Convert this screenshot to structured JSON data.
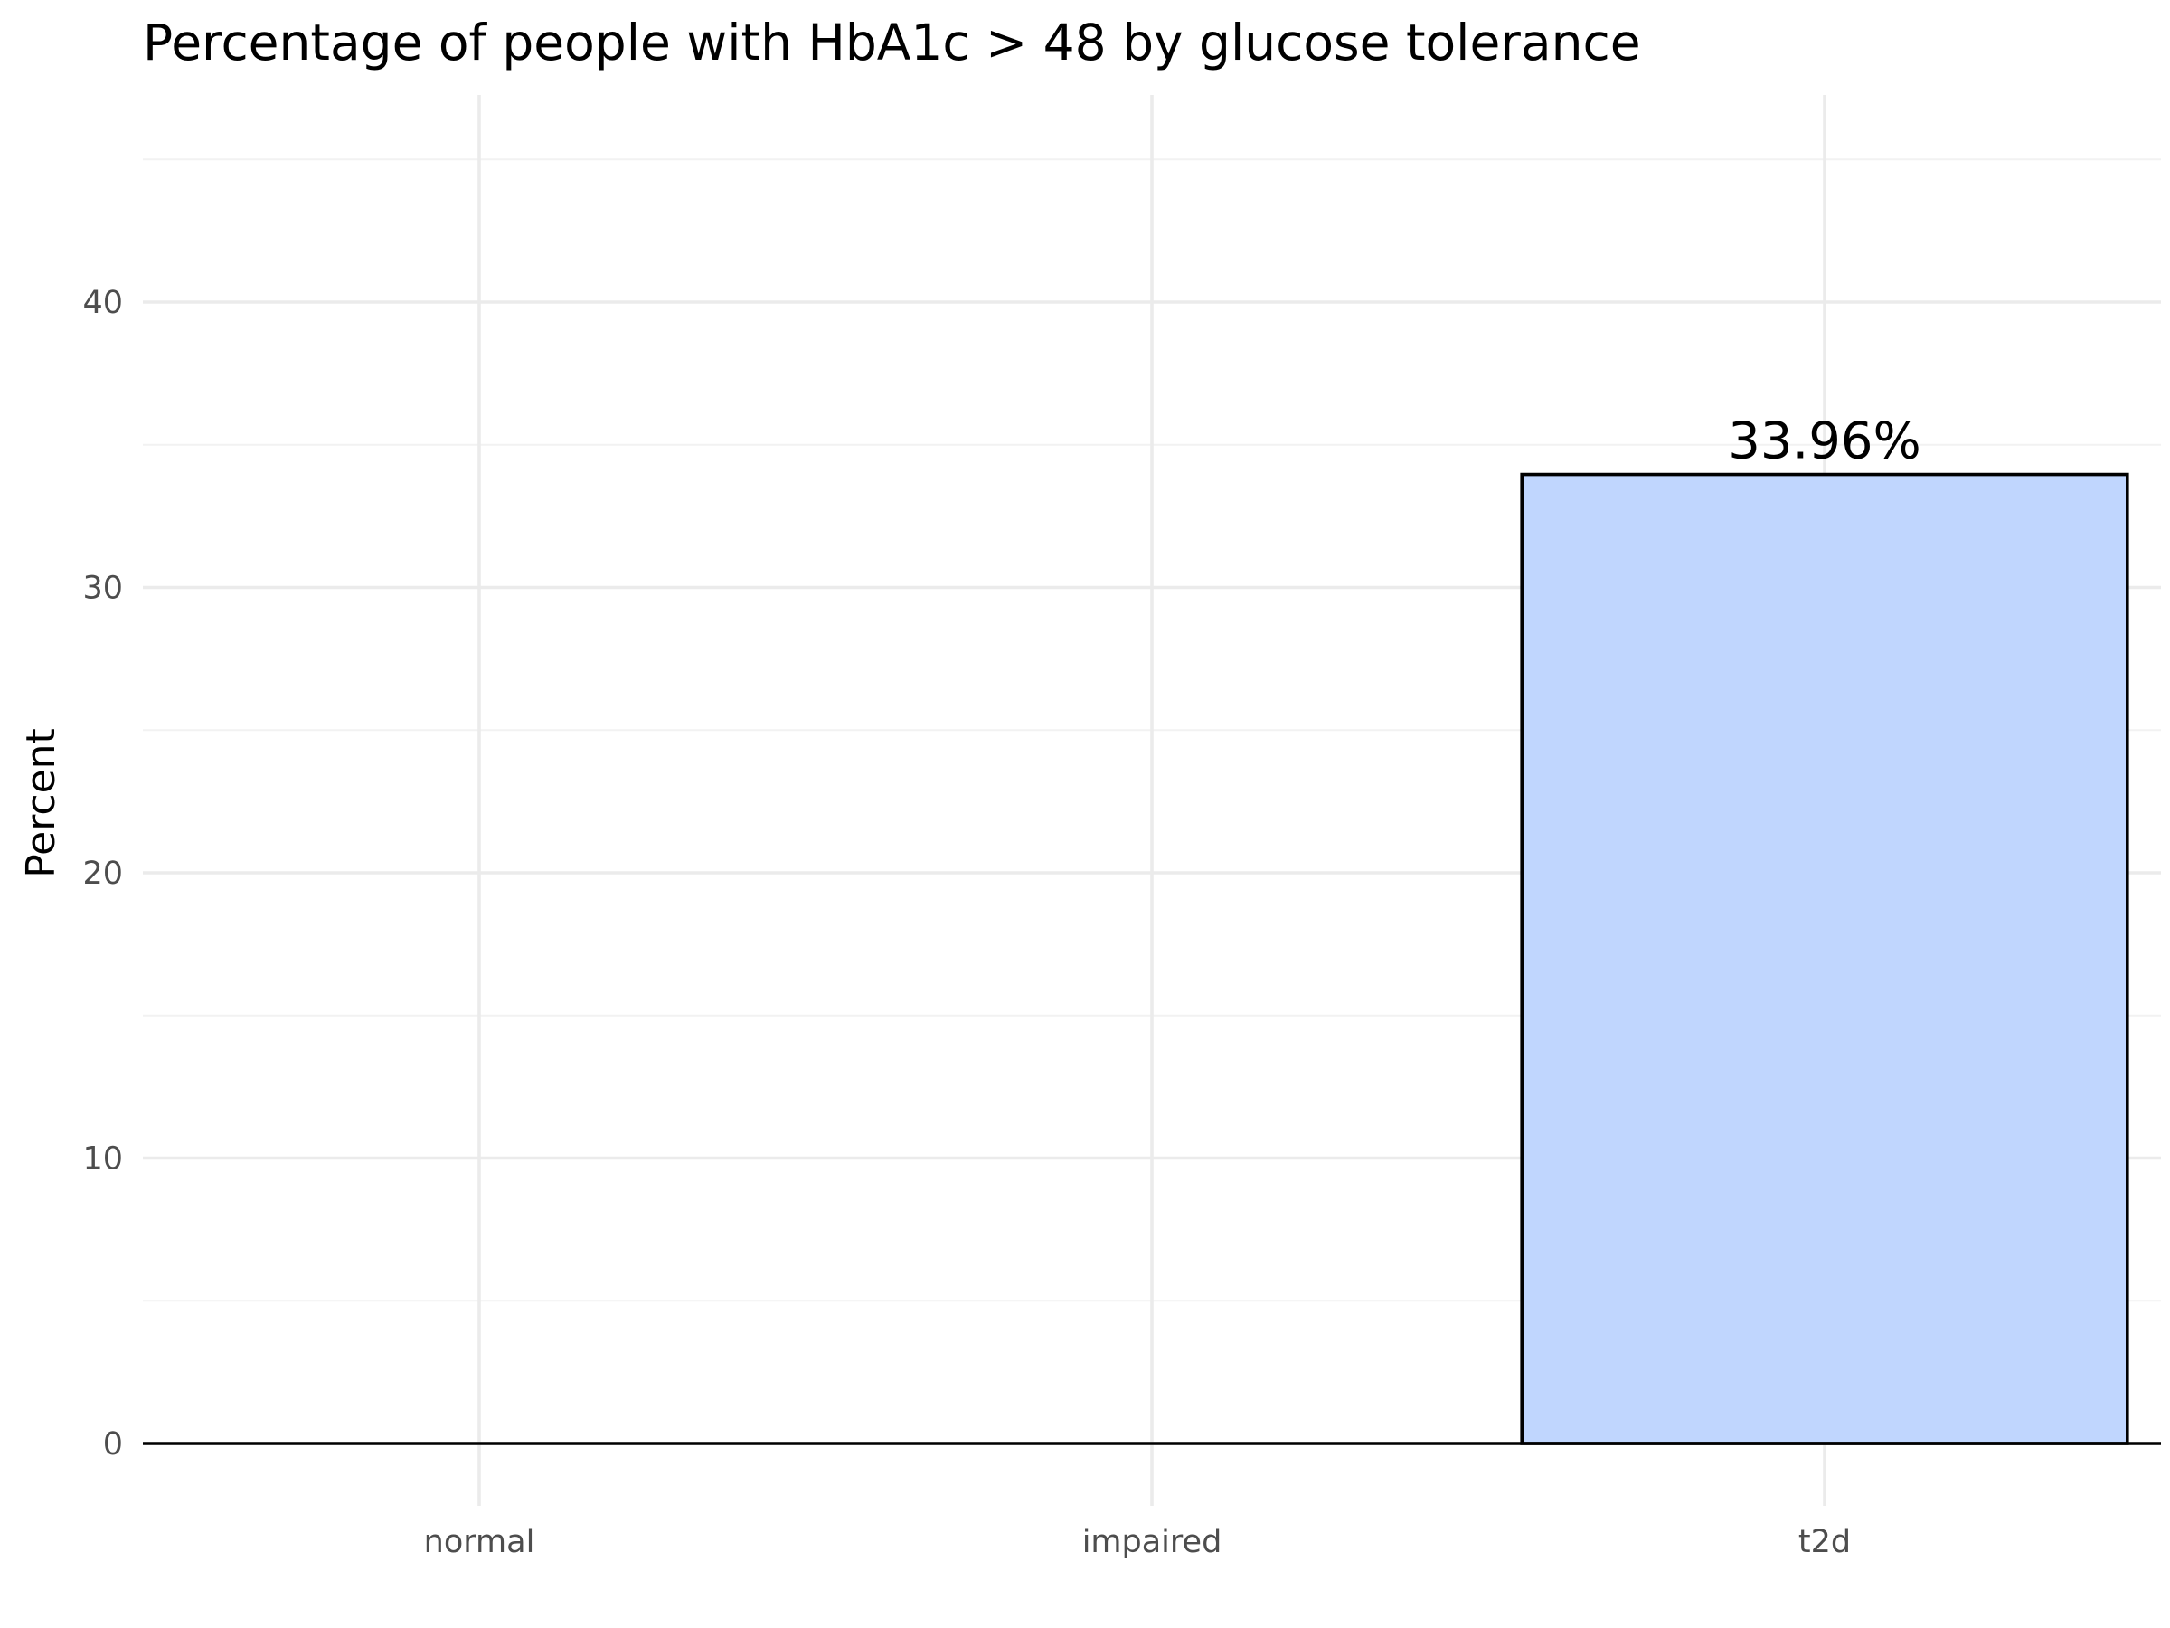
{
  "chart_data": {
    "type": "bar",
    "title": "Percentage of people with HbA1c > 48 by glucose tolerance",
    "xlabel": "",
    "ylabel": "Percent",
    "categories": [
      "normal",
      "impaired",
      "t2d"
    ],
    "values": [
      0,
      0,
      33.96
    ],
    "data_labels": [
      "",
      "",
      "33.96%"
    ],
    "ylim": [
      0,
      45
    ],
    "yticks": [
      0,
      10,
      20,
      30,
      40
    ],
    "ytick_labels": [
      "0",
      "10",
      "20",
      "30",
      "40"
    ],
    "grid": true,
    "legend": "none",
    "colors": {
      "bar_fill": "#c0d6fe",
      "bar_stroke": "#000000"
    }
  }
}
